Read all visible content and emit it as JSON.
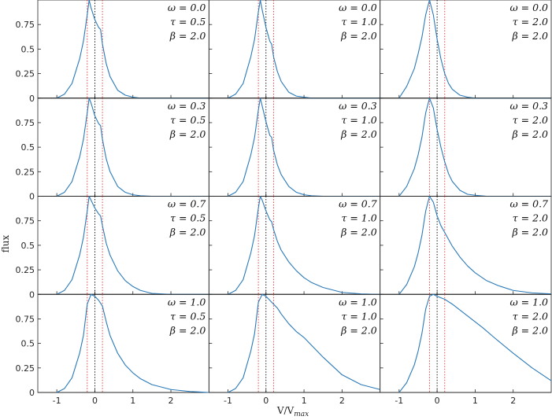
{
  "chart_data": {
    "type": "line",
    "grid": "4x3 small multiples, shared axes",
    "xlabel": "V/V",
    "xlabel_sub": "max",
    "ylabel": "flux",
    "xlim": [
      -1.5,
      3.0
    ],
    "ylim": [
      0,
      1.0
    ],
    "xticks": [
      -1,
      0,
      1,
      2
    ],
    "yticks": [
      0,
      0.25,
      0.5,
      0.75
    ],
    "ytick_labels": [
      "0",
      "0.25",
      "0.5",
      "0.75"
    ],
    "line_color": "#2a7ab9",
    "vline_center": {
      "x": 0,
      "color": "#000000",
      "style": "dotted"
    },
    "vline_sides": {
      "x": [
        -0.2,
        0.2
      ],
      "color": "#e3342f",
      "style": "dotted"
    },
    "panels": [
      {
        "omega": "0.0",
        "tau": "0.5",
        "beta": "2.0",
        "ann_omega": "ω = 0.0",
        "ann_tau": "τ = 0.5",
        "ann_beta": "β = 2.0",
        "x": [
          -1.0,
          -0.8,
          -0.6,
          -0.4,
          -0.3,
          -0.2,
          -0.15,
          -0.1,
          0,
          0.1,
          0.15,
          0.2,
          0.3,
          0.4,
          0.6,
          0.8,
          1.0,
          1.2,
          1.5,
          2.0,
          3.0
        ],
        "y": [
          0,
          0.04,
          0.15,
          0.4,
          0.58,
          0.85,
          1.0,
          0.92,
          0.8,
          0.72,
          0.7,
          0.55,
          0.35,
          0.22,
          0.08,
          0.03,
          0.01,
          0,
          0,
          0,
          0
        ]
      },
      {
        "omega": "0.0",
        "tau": "1.0",
        "beta": "2.0",
        "ann_omega": "ω = 0.0",
        "ann_tau": "τ = 1.0",
        "ann_beta": "β = 2.0",
        "x": [
          -1.0,
          -0.8,
          -0.6,
          -0.4,
          -0.3,
          -0.2,
          -0.15,
          -0.1,
          0,
          0.1,
          0.15,
          0.2,
          0.3,
          0.4,
          0.6,
          0.8,
          1.0,
          1.2,
          1.5,
          2.0,
          3.0
        ],
        "y": [
          0,
          0.04,
          0.15,
          0.42,
          0.6,
          0.88,
          1.0,
          0.9,
          0.72,
          0.58,
          0.55,
          0.42,
          0.27,
          0.17,
          0.06,
          0.02,
          0.01,
          0,
          0,
          0,
          0
        ]
      },
      {
        "omega": "0.0",
        "tau": "2.0",
        "beta": "2.0",
        "ann_omega": "ω = 0.0",
        "ann_tau": "τ = 2.0",
        "ann_beta": "β = 2.0",
        "x": [
          -1.0,
          -0.8,
          -0.6,
          -0.5,
          -0.4,
          -0.3,
          -0.2,
          -0.1,
          0,
          0.1,
          0.2,
          0.3,
          0.4,
          0.6,
          0.8,
          1.0,
          1.3,
          1.6,
          2.0,
          3.0
        ],
        "y": [
          0,
          0.12,
          0.3,
          0.45,
          0.62,
          0.85,
          1.0,
          0.85,
          0.6,
          0.4,
          0.25,
          0.15,
          0.09,
          0.03,
          0.01,
          0,
          0,
          0,
          0,
          0
        ]
      },
      {
        "omega": "0.3",
        "tau": "0.5",
        "beta": "2.0",
        "ann_omega": "ω = 0.3",
        "ann_tau": "τ = 0.5",
        "ann_beta": "β = 2.0",
        "x": [
          -1.0,
          -0.8,
          -0.6,
          -0.4,
          -0.3,
          -0.2,
          -0.15,
          -0.1,
          0,
          0.1,
          0.15,
          0.2,
          0.3,
          0.4,
          0.6,
          0.8,
          1.0,
          1.2,
          1.5,
          2.0,
          3.0
        ],
        "y": [
          0,
          0.04,
          0.15,
          0.4,
          0.58,
          0.85,
          1.0,
          0.95,
          0.82,
          0.74,
          0.72,
          0.58,
          0.38,
          0.25,
          0.1,
          0.04,
          0.015,
          0.005,
          0,
          0,
          0
        ]
      },
      {
        "omega": "0.3",
        "tau": "1.0",
        "beta": "2.0",
        "ann_omega": "ω = 0.3",
        "ann_tau": "τ = 1.0",
        "ann_beta": "β = 2.0",
        "x": [
          -1.0,
          -0.8,
          -0.6,
          -0.4,
          -0.3,
          -0.2,
          -0.15,
          -0.1,
          0,
          0.1,
          0.15,
          0.2,
          0.3,
          0.4,
          0.6,
          0.8,
          1.0,
          1.2,
          1.5,
          2.0,
          3.0
        ],
        "y": [
          0,
          0.04,
          0.15,
          0.42,
          0.6,
          0.88,
          1.0,
          0.92,
          0.76,
          0.62,
          0.6,
          0.47,
          0.32,
          0.22,
          0.1,
          0.04,
          0.015,
          0.005,
          0,
          0,
          0
        ]
      },
      {
        "omega": "0.3",
        "tau": "2.0",
        "beta": "2.0",
        "ann_omega": "ω = 0.3",
        "ann_tau": "τ = 2.0",
        "ann_beta": "β = 2.0",
        "x": [
          -1.0,
          -0.8,
          -0.6,
          -0.5,
          -0.4,
          -0.3,
          -0.2,
          -0.1,
          0,
          0.1,
          0.2,
          0.3,
          0.4,
          0.6,
          0.8,
          1.0,
          1.3,
          1.6,
          2.0,
          3.0
        ],
        "y": [
          0,
          0.1,
          0.28,
          0.42,
          0.6,
          0.85,
          1.0,
          0.9,
          0.68,
          0.5,
          0.35,
          0.23,
          0.15,
          0.06,
          0.02,
          0.01,
          0,
          0,
          0,
          0
        ]
      },
      {
        "omega": "0.7",
        "tau": "0.5",
        "beta": "2.0",
        "ann_omega": "ω = 0.7",
        "ann_tau": "τ = 0.5",
        "ann_beta": "β = 2.0",
        "x": [
          -1.0,
          -0.8,
          -0.6,
          -0.4,
          -0.3,
          -0.2,
          -0.15,
          -0.1,
          0,
          0.1,
          0.15,
          0.2,
          0.3,
          0.4,
          0.6,
          0.8,
          1.0,
          1.2,
          1.5,
          2.0,
          3.0
        ],
        "y": [
          0,
          0.04,
          0.15,
          0.4,
          0.58,
          0.85,
          1.0,
          0.96,
          0.88,
          0.82,
          0.8,
          0.7,
          0.52,
          0.4,
          0.24,
          0.14,
          0.08,
          0.04,
          0.01,
          0,
          0
        ]
      },
      {
        "omega": "0.7",
        "tau": "1.0",
        "beta": "2.0",
        "ann_omega": "ω = 0.7",
        "ann_tau": "τ = 1.0",
        "ann_beta": "β = 2.0",
        "x": [
          -1.0,
          -0.8,
          -0.6,
          -0.4,
          -0.3,
          -0.2,
          -0.15,
          -0.1,
          0,
          0.1,
          0.15,
          0.2,
          0.3,
          0.4,
          0.6,
          0.8,
          1.0,
          1.2,
          1.5,
          2.0,
          2.5,
          3.0
        ],
        "y": [
          0,
          0.04,
          0.15,
          0.42,
          0.6,
          0.88,
          1.0,
          0.96,
          0.85,
          0.76,
          0.74,
          0.66,
          0.54,
          0.45,
          0.33,
          0.24,
          0.17,
          0.12,
          0.07,
          0.02,
          0.005,
          0
        ]
      },
      {
        "omega": "0.7",
        "tau": "2.0",
        "beta": "2.0",
        "ann_omega": "ω = 0.7",
        "ann_tau": "τ = 2.0",
        "ann_beta": "β = 2.0",
        "x": [
          -1.0,
          -0.8,
          -0.6,
          -0.5,
          -0.4,
          -0.3,
          -0.2,
          -0.1,
          0,
          0.1,
          0.2,
          0.3,
          0.4,
          0.6,
          0.8,
          1.0,
          1.3,
          1.6,
          2.0,
          2.5,
          3.0
        ],
        "y": [
          0,
          0.1,
          0.28,
          0.42,
          0.6,
          0.85,
          1.0,
          0.94,
          0.8,
          0.7,
          0.63,
          0.56,
          0.49,
          0.38,
          0.29,
          0.22,
          0.14,
          0.09,
          0.04,
          0.015,
          0.005
        ]
      },
      {
        "omega": "1.0",
        "tau": "0.5",
        "beta": "2.0",
        "ann_omega": "ω = 1.0",
        "ann_tau": "τ = 0.5",
        "ann_beta": "β = 2.0",
        "x": [
          -1.0,
          -0.8,
          -0.6,
          -0.4,
          -0.3,
          -0.2,
          -0.1,
          0,
          0.1,
          0.2,
          0.3,
          0.4,
          0.6,
          0.8,
          1.0,
          1.2,
          1.5,
          2.0,
          2.5,
          3.0
        ],
        "y": [
          0,
          0.04,
          0.15,
          0.4,
          0.58,
          0.9,
          1.0,
          0.98,
          0.94,
          0.88,
          0.72,
          0.58,
          0.4,
          0.28,
          0.2,
          0.14,
          0.08,
          0.03,
          0.01,
          0
        ]
      },
      {
        "omega": "1.0",
        "tau": "1.0",
        "beta": "2.0",
        "ann_omega": "ω = 1.0",
        "ann_tau": "τ = 1.0",
        "ann_beta": "β = 2.0",
        "x": [
          -1.0,
          -0.8,
          -0.6,
          -0.4,
          -0.3,
          -0.2,
          -0.1,
          0,
          0.1,
          0.2,
          0.3,
          0.4,
          0.6,
          0.8,
          1.0,
          1.2,
          1.5,
          2.0,
          2.5,
          3.0
        ],
        "y": [
          0,
          0.04,
          0.15,
          0.42,
          0.6,
          0.92,
          1.0,
          0.98,
          0.94,
          0.9,
          0.86,
          0.8,
          0.7,
          0.62,
          0.56,
          0.48,
          0.36,
          0.18,
          0.08,
          0.03
        ]
      },
      {
        "omega": "1.0",
        "tau": "2.0",
        "beta": "2.0",
        "ann_omega": "ω = 1.0",
        "ann_tau": "τ = 2.0",
        "ann_beta": "β = 2.0",
        "x": [
          -1.0,
          -0.8,
          -0.6,
          -0.5,
          -0.4,
          -0.3,
          -0.2,
          -0.1,
          0,
          0.2,
          0.4,
          0.6,
          0.8,
          1.0,
          1.2,
          1.5,
          2.0,
          2.5,
          3.0
        ],
        "y": [
          0,
          0.1,
          0.28,
          0.42,
          0.6,
          0.85,
          0.98,
          1.0,
          0.98,
          0.95,
          0.9,
          0.84,
          0.78,
          0.72,
          0.66,
          0.56,
          0.4,
          0.25,
          0.12
        ]
      }
    ]
  }
}
